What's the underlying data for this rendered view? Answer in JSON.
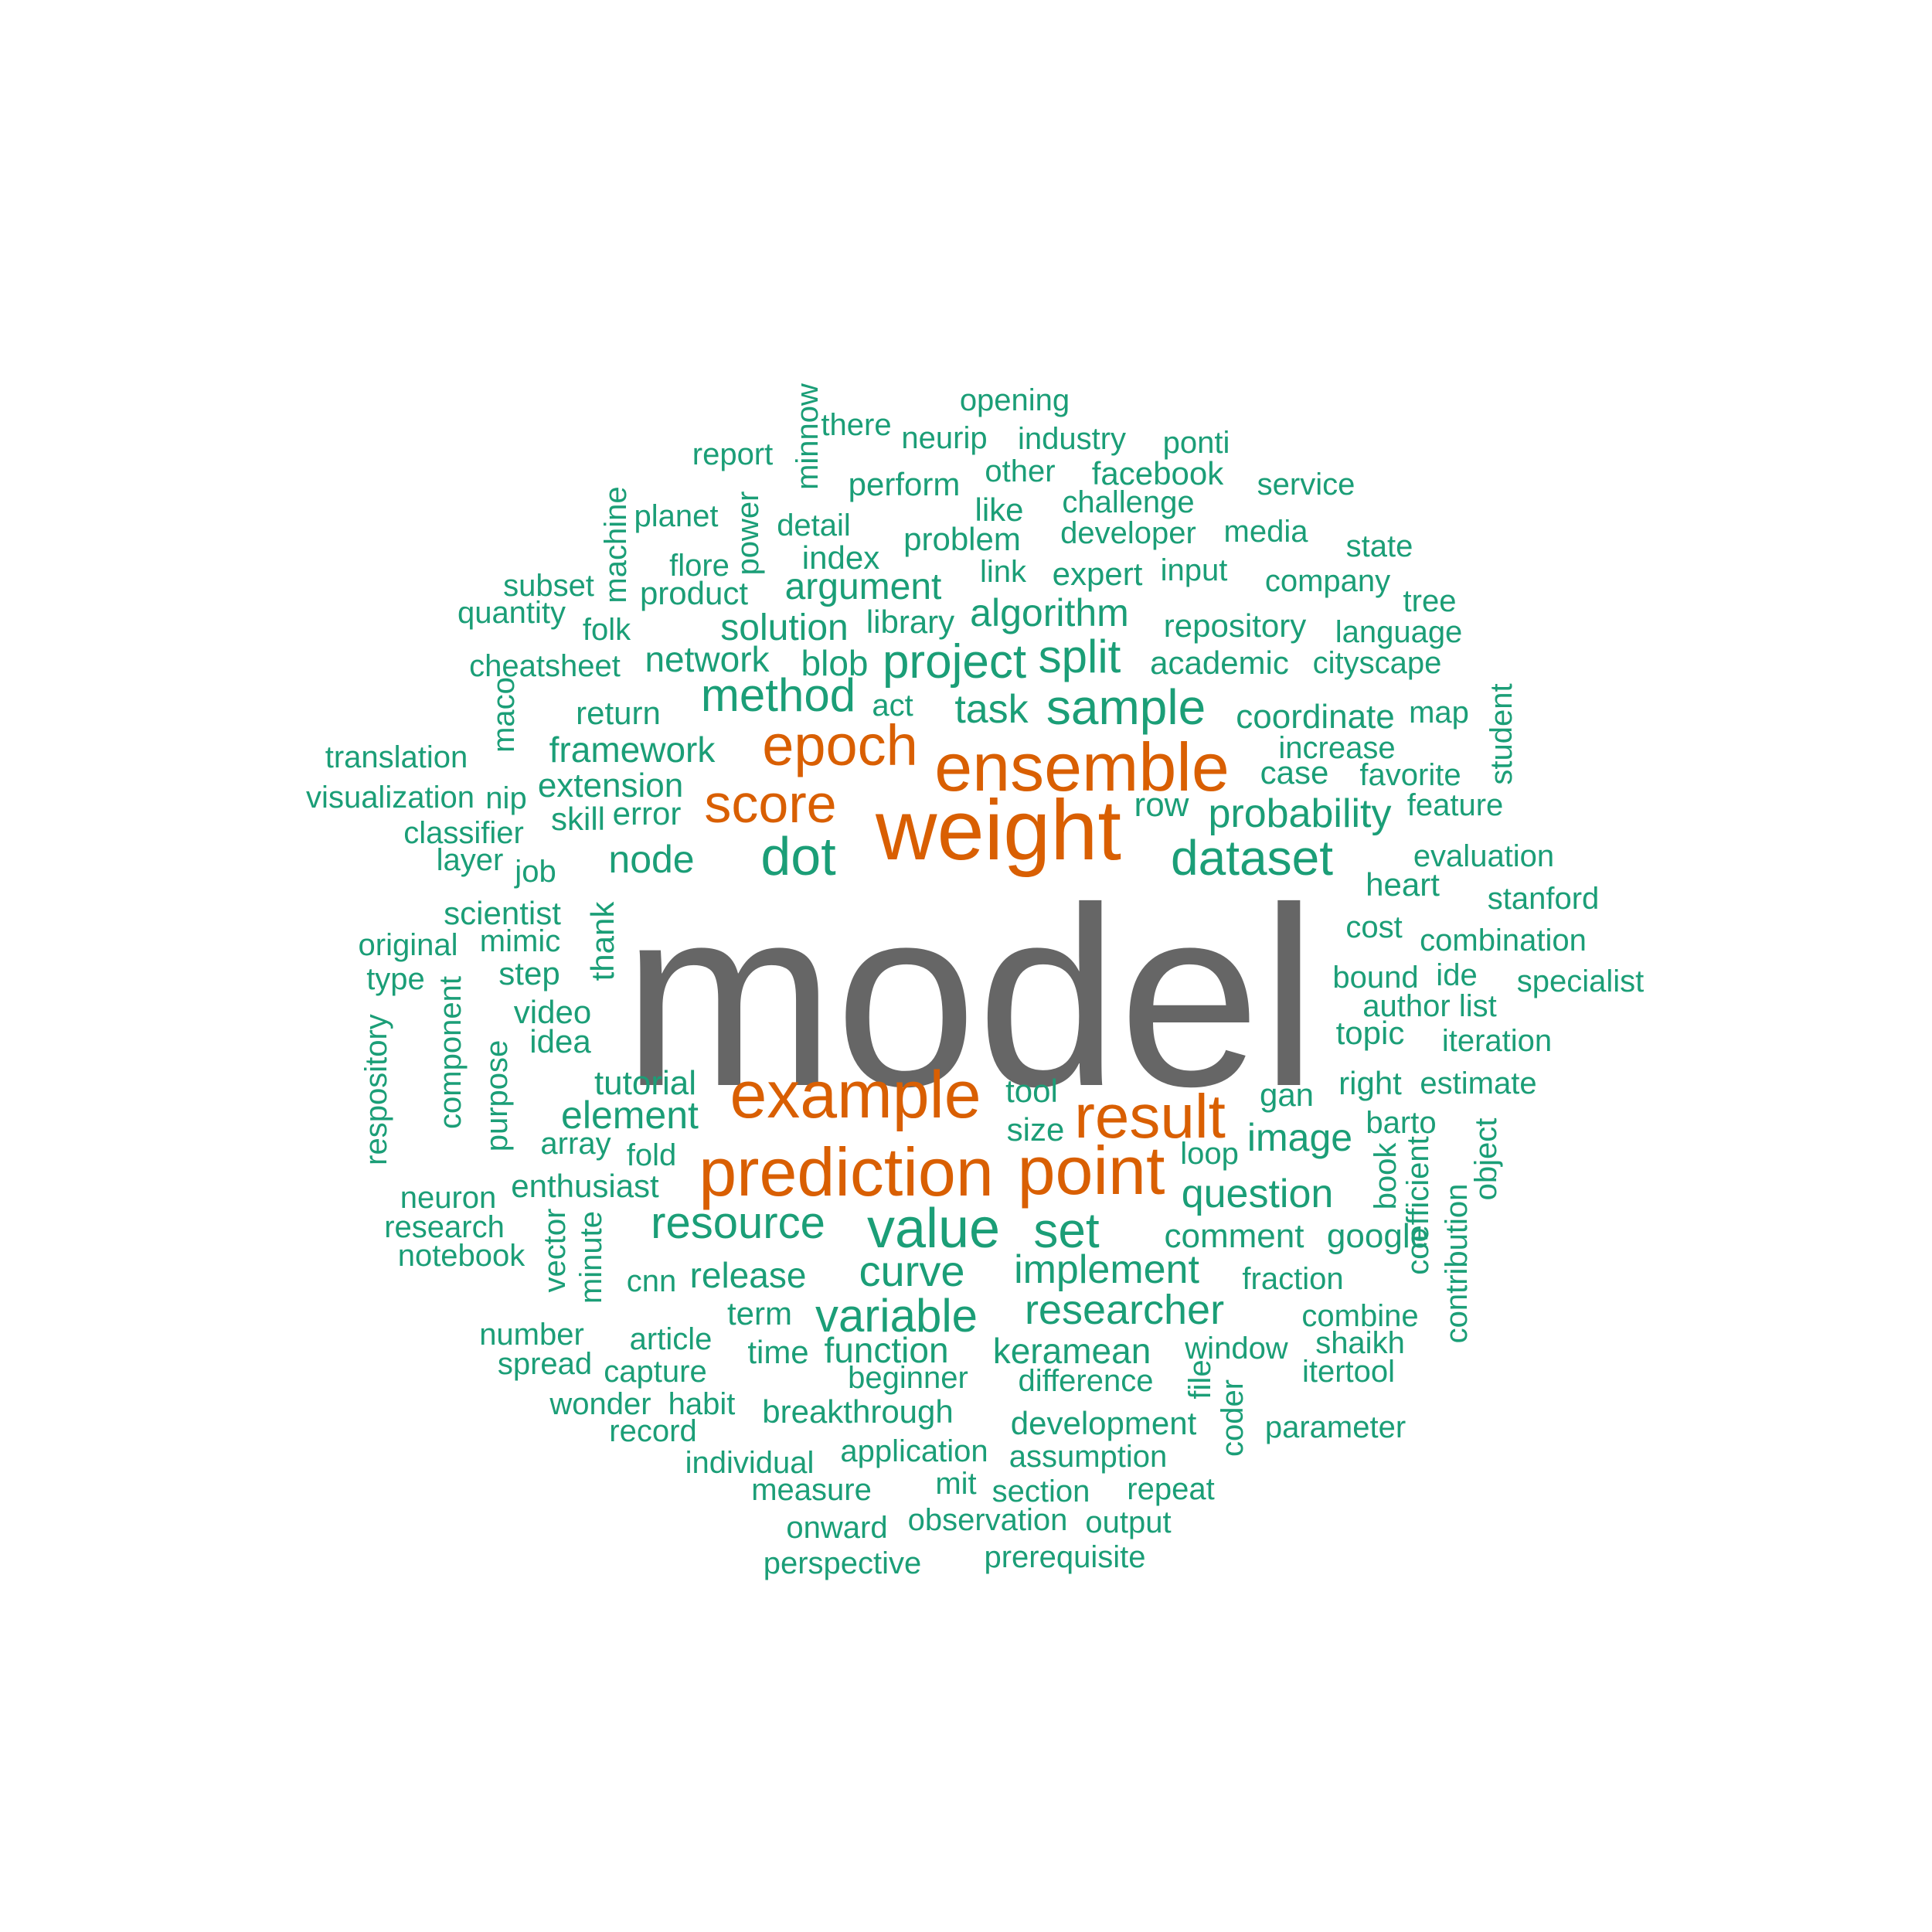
{
  "colors": {
    "top": "#666666",
    "high": "#d95f02",
    "rest": "#1b9e77"
  },
  "words": [
    {
      "text": "model",
      "tier": "top"
    },
    {
      "text": "weight",
      "tier": "high"
    },
    {
      "text": "ensemble",
      "tier": "high"
    },
    {
      "text": "epoch",
      "tier": "high"
    },
    {
      "text": "score",
      "tier": "high"
    },
    {
      "text": "example",
      "tier": "high"
    },
    {
      "text": "prediction",
      "tier": "high"
    },
    {
      "text": "point",
      "tier": "high"
    },
    {
      "text": "result",
      "tier": "high"
    },
    {
      "text": "dot",
      "tier": "rest"
    },
    {
      "text": "dataset",
      "tier": "rest"
    },
    {
      "text": "value",
      "tier": "rest"
    },
    {
      "text": "set",
      "tier": "rest"
    },
    {
      "text": "resource",
      "tier": "rest"
    },
    {
      "text": "sample",
      "tier": "rest"
    },
    {
      "text": "project",
      "tier": "rest"
    },
    {
      "text": "split",
      "tier": "rest"
    },
    {
      "text": "method",
      "tier": "rest"
    },
    {
      "text": "task",
      "tier": "rest"
    },
    {
      "text": "variable",
      "tier": "rest"
    },
    {
      "text": "curve",
      "tier": "rest"
    },
    {
      "text": "researcher",
      "tier": "rest"
    },
    {
      "text": "implement",
      "tier": "rest"
    },
    {
      "text": "question",
      "tier": "rest"
    },
    {
      "text": "probability",
      "tier": "rest"
    },
    {
      "text": "node",
      "tier": "rest"
    },
    {
      "text": "element",
      "tier": "rest"
    },
    {
      "text": "image",
      "tier": "rest"
    },
    {
      "text": "algorithm",
      "tier": "rest"
    },
    {
      "text": "argument",
      "tier": "rest"
    },
    {
      "text": "solution",
      "tier": "rest"
    },
    {
      "text": "network",
      "tier": "rest"
    },
    {
      "text": "blob",
      "tier": "rest"
    },
    {
      "text": "framework",
      "tier": "rest"
    },
    {
      "text": "extension",
      "tier": "rest"
    },
    {
      "text": "tutorial",
      "tier": "rest"
    },
    {
      "text": "comment",
      "tier": "rest"
    },
    {
      "text": "google",
      "tier": "rest"
    },
    {
      "text": "coordinate",
      "tier": "rest"
    },
    {
      "text": "function",
      "tier": "rest"
    },
    {
      "text": "release",
      "tier": "rest"
    },
    {
      "text": "keramean",
      "tier": "rest"
    },
    {
      "text": "development",
      "tier": "rest"
    },
    {
      "text": "breakthrough",
      "tier": "rest"
    },
    {
      "text": "repository",
      "tier": "rest"
    },
    {
      "text": "academic",
      "tier": "rest"
    },
    {
      "text": "problem",
      "tier": "rest"
    },
    {
      "text": "expert",
      "tier": "rest"
    },
    {
      "text": "row",
      "tier": "rest"
    },
    {
      "text": "gan",
      "tier": "rest"
    },
    {
      "text": "right",
      "tier": "rest"
    },
    {
      "text": "tool",
      "tier": "rest"
    },
    {
      "text": "size",
      "tier": "rest"
    },
    {
      "text": "time",
      "tier": "rest"
    },
    {
      "text": "term",
      "tier": "rest"
    },
    {
      "text": "fraction",
      "tier": "rest"
    },
    {
      "text": "window",
      "tier": "rest"
    },
    {
      "text": "difference",
      "tier": "rest"
    },
    {
      "text": "beginner",
      "tier": "rest"
    },
    {
      "text": "application",
      "tier": "rest"
    },
    {
      "text": "assumption",
      "tier": "rest"
    },
    {
      "text": "measure",
      "tier": "rest"
    },
    {
      "text": "section",
      "tier": "rest"
    },
    {
      "text": "repeat",
      "tier": "rest"
    },
    {
      "text": "observation",
      "tier": "rest"
    },
    {
      "text": "onward",
      "tier": "rest"
    },
    {
      "text": "output",
      "tier": "rest"
    },
    {
      "text": "perspective",
      "tier": "rest"
    },
    {
      "text": "prerequisite",
      "tier": "rest"
    },
    {
      "text": "mit",
      "tier": "rest"
    },
    {
      "text": "individual",
      "tier": "rest"
    },
    {
      "text": "record",
      "tier": "rest"
    },
    {
      "text": "habit",
      "tier": "rest"
    },
    {
      "text": "wonder",
      "tier": "rest"
    },
    {
      "text": "capture",
      "tier": "rest"
    },
    {
      "text": "spread",
      "tier": "rest"
    },
    {
      "text": "article",
      "tier": "rest"
    },
    {
      "text": "number",
      "tier": "rest"
    },
    {
      "text": "cnn",
      "tier": "rest"
    },
    {
      "text": "notebook",
      "tier": "rest"
    },
    {
      "text": "research",
      "tier": "rest"
    },
    {
      "text": "neuron",
      "tier": "rest"
    },
    {
      "text": "enthusiast",
      "tier": "rest"
    },
    {
      "text": "fold",
      "tier": "rest"
    },
    {
      "text": "array",
      "tier": "rest"
    },
    {
      "text": "idea",
      "tier": "rest"
    },
    {
      "text": "video",
      "tier": "rest"
    },
    {
      "text": "step",
      "tier": "rest"
    },
    {
      "text": "type",
      "tier": "rest"
    },
    {
      "text": "mimic",
      "tier": "rest"
    },
    {
      "text": "original",
      "tier": "rest"
    },
    {
      "text": "scientist",
      "tier": "rest"
    },
    {
      "text": "job",
      "tier": "rest"
    },
    {
      "text": "layer",
      "tier": "rest"
    },
    {
      "text": "classifier",
      "tier": "rest"
    },
    {
      "text": "skill",
      "tier": "rest"
    },
    {
      "text": "error",
      "tier": "rest"
    },
    {
      "text": "visualization",
      "tier": "rest"
    },
    {
      "text": "nip",
      "tier": "rest"
    },
    {
      "text": "translation",
      "tier": "rest"
    },
    {
      "text": "return",
      "tier": "rest"
    },
    {
      "text": "act",
      "tier": "rest"
    },
    {
      "text": "cheatsheet",
      "tier": "rest"
    },
    {
      "text": "quantity",
      "tier": "rest"
    },
    {
      "text": "subset",
      "tier": "rest"
    },
    {
      "text": "folk",
      "tier": "rest"
    },
    {
      "text": "product",
      "tier": "rest"
    },
    {
      "text": "flore",
      "tier": "rest"
    },
    {
      "text": "planet",
      "tier": "rest"
    },
    {
      "text": "report",
      "tier": "rest"
    },
    {
      "text": "detail",
      "tier": "rest"
    },
    {
      "text": "index",
      "tier": "rest"
    },
    {
      "text": "library",
      "tier": "rest"
    },
    {
      "text": "link",
      "tier": "rest"
    },
    {
      "text": "like",
      "tier": "rest"
    },
    {
      "text": "perform",
      "tier": "rest"
    },
    {
      "text": "there",
      "tier": "rest"
    },
    {
      "text": "neurip",
      "tier": "rest"
    },
    {
      "text": "opening",
      "tier": "rest"
    },
    {
      "text": "industry",
      "tier": "rest"
    },
    {
      "text": "ponti",
      "tier": "rest"
    },
    {
      "text": "other",
      "tier": "rest"
    },
    {
      "text": "facebook",
      "tier": "rest"
    },
    {
      "text": "service",
      "tier": "rest"
    },
    {
      "text": "challenge",
      "tier": "rest"
    },
    {
      "text": "developer",
      "tier": "rest"
    },
    {
      "text": "media",
      "tier": "rest"
    },
    {
      "text": "state",
      "tier": "rest"
    },
    {
      "text": "input",
      "tier": "rest"
    },
    {
      "text": "company",
      "tier": "rest"
    },
    {
      "text": "tree",
      "tier": "rest"
    },
    {
      "text": "language",
      "tier": "rest"
    },
    {
      "text": "cityscape",
      "tier": "rest"
    },
    {
      "text": "map",
      "tier": "rest"
    },
    {
      "text": "increase",
      "tier": "rest"
    },
    {
      "text": "case",
      "tier": "rest"
    },
    {
      "text": "favorite",
      "tier": "rest"
    },
    {
      "text": "feature",
      "tier": "rest"
    },
    {
      "text": "evaluation",
      "tier": "rest"
    },
    {
      "text": "heart",
      "tier": "rest"
    },
    {
      "text": "stanford",
      "tier": "rest"
    },
    {
      "text": "cost",
      "tier": "rest"
    },
    {
      "text": "combination",
      "tier": "rest"
    },
    {
      "text": "bound",
      "tier": "rest"
    },
    {
      "text": "ide",
      "tier": "rest"
    },
    {
      "text": "specialist",
      "tier": "rest"
    },
    {
      "text": "author list",
      "tier": "rest"
    },
    {
      "text": "topic",
      "tier": "rest"
    },
    {
      "text": "iteration",
      "tier": "rest"
    },
    {
      "text": "estimate",
      "tier": "rest"
    },
    {
      "text": "barto",
      "tier": "rest"
    },
    {
      "text": "loop",
      "tier": "rest"
    },
    {
      "text": "combine",
      "tier": "rest"
    },
    {
      "text": "shaikh",
      "tier": "rest"
    },
    {
      "text": "itertool",
      "tier": "rest"
    },
    {
      "text": "parameter",
      "tier": "rest"
    },
    {
      "text": "minnow",
      "tier": "rest"
    },
    {
      "text": "machine",
      "tier": "rest"
    },
    {
      "text": "power",
      "tier": "rest"
    },
    {
      "text": "maco",
      "tier": "rest"
    },
    {
      "text": "thank",
      "tier": "rest"
    },
    {
      "text": "component",
      "tier": "rest"
    },
    {
      "text": "respository",
      "tier": "rest"
    },
    {
      "text": "purpose",
      "tier": "rest"
    },
    {
      "text": "vector",
      "tier": "rest"
    },
    {
      "text": "minute",
      "tier": "rest"
    },
    {
      "text": "student",
      "tier": "rest"
    },
    {
      "text": "book",
      "tier": "rest"
    },
    {
      "text": "coefficient",
      "tier": "rest"
    },
    {
      "text": "object",
      "tier": "rest"
    },
    {
      "text": "contribution",
      "tier": "rest"
    },
    {
      "text": "file",
      "tier": "rest"
    },
    {
      "text": "coder",
      "tier": "rest"
    }
  ]
}
